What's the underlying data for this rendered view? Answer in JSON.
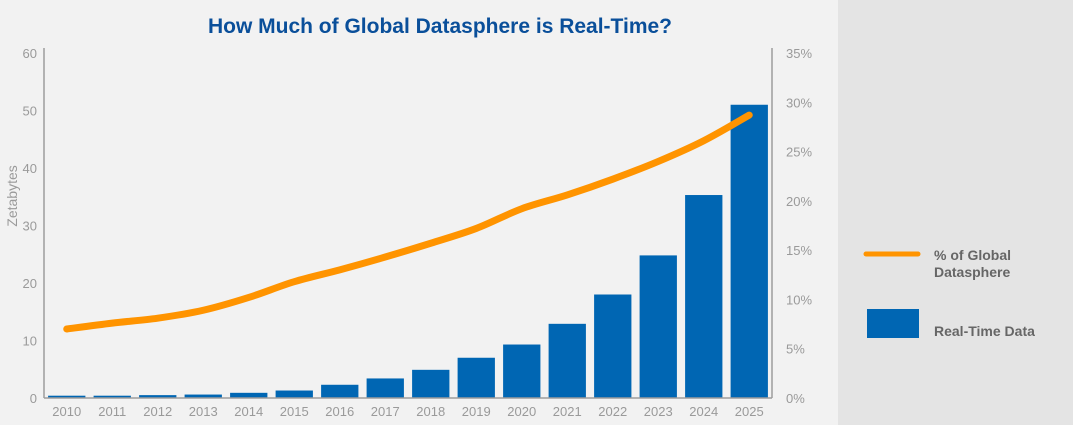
{
  "chart_data": {
    "type": "bar",
    "title": "How Much of Global Datasphere is Real-Time?",
    "ylabel": "Zetabytes",
    "y2label": "",
    "ylim": [
      0,
      60
    ],
    "y2lim": [
      0,
      35
    ],
    "yticks": [
      "0",
      "10",
      "20",
      "30",
      "40",
      "50",
      "60"
    ],
    "y2ticks": [
      "0%",
      "5%",
      "10%",
      "15%",
      "20%",
      "25%",
      "30%",
      "35%"
    ],
    "categories": [
      "2010",
      "2011",
      "2012",
      "2013",
      "2014",
      "2015",
      "2016",
      "2017",
      "2018",
      "2019",
      "2020",
      "2021",
      "2022",
      "2023",
      "2024",
      "2025"
    ],
    "grid": false,
    "legend_position": "right",
    "series": [
      {
        "name": "Real-Time Data",
        "type": "bar",
        "axis": "left",
        "color": "#0066b3",
        "values": [
          0.4,
          0.4,
          0.5,
          0.6,
          0.9,
          1.3,
          2.3,
          3.4,
          4.9,
          7.0,
          9.3,
          12.9,
          18.0,
          24.8,
          35.3,
          51.0
        ]
      },
      {
        "name": "% of Global Datasphere",
        "type": "line",
        "axis": "right",
        "color": "#ff9400",
        "values": [
          7.0,
          7.6,
          8.1,
          8.9,
          10.2,
          11.8,
          13.0,
          14.3,
          15.7,
          17.2,
          19.2,
          20.6,
          22.2,
          24.0,
          26.1,
          28.7
        ]
      }
    ],
    "legend": [
      {
        "label": "% of Global\nDatasphere",
        "kind": "line",
        "color": "#ff9400"
      },
      {
        "label": "Real-Time Data",
        "kind": "bar",
        "color": "#0066b3"
      }
    ],
    "colors": {
      "title": "#0a4f9a",
      "axis": "#9c9c9c",
      "tick_label": "#9a9a9a",
      "legend_text": "#666666"
    }
  }
}
